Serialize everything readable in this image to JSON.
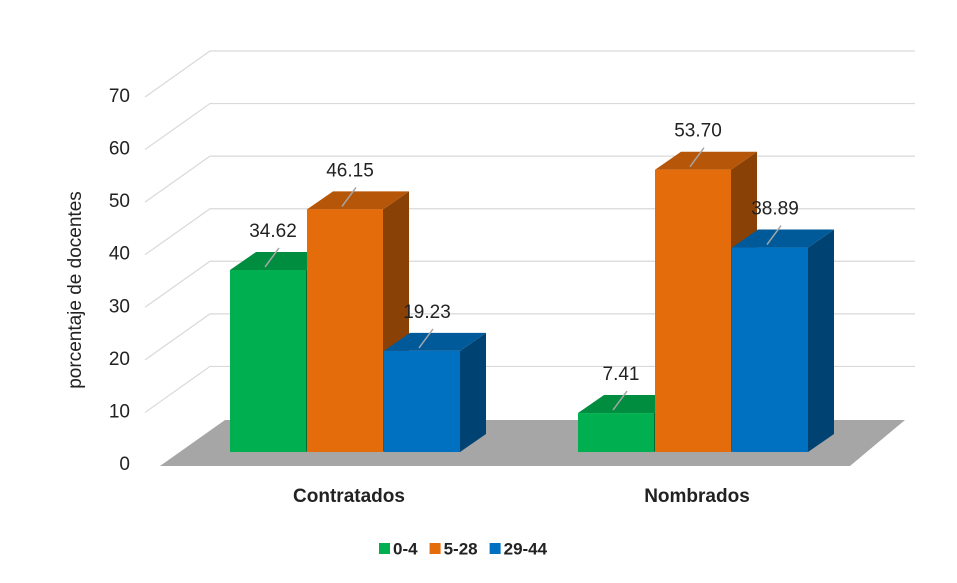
{
  "chart_data": {
    "type": "bar3d",
    "categories": [
      "Contratados",
      "Nombrados"
    ],
    "y_label": "porcentaje de docentes",
    "series": [
      {
        "name": "0-4",
        "color": "#00b050",
        "values": [
          34.62,
          7.41
        ],
        "value_labels": [
          "34.62",
          "7.41"
        ]
      },
      {
        "name": "5-28",
        "color": "#e46c0a",
        "values": [
          46.15,
          53.7
        ],
        "value_labels": [
          "46.15",
          "53.70"
        ]
      },
      {
        "name": "29-44",
        "color": "#0070c0",
        "values": [
          19.23,
          38.89
        ],
        "value_labels": [
          "19.23",
          "38.89"
        ]
      }
    ],
    "ylim": [
      0,
      70
    ],
    "yticks": [
      0,
      10,
      20,
      30,
      40,
      50,
      60,
      70
    ],
    "grid": true,
    "legend": "bottom"
  }
}
